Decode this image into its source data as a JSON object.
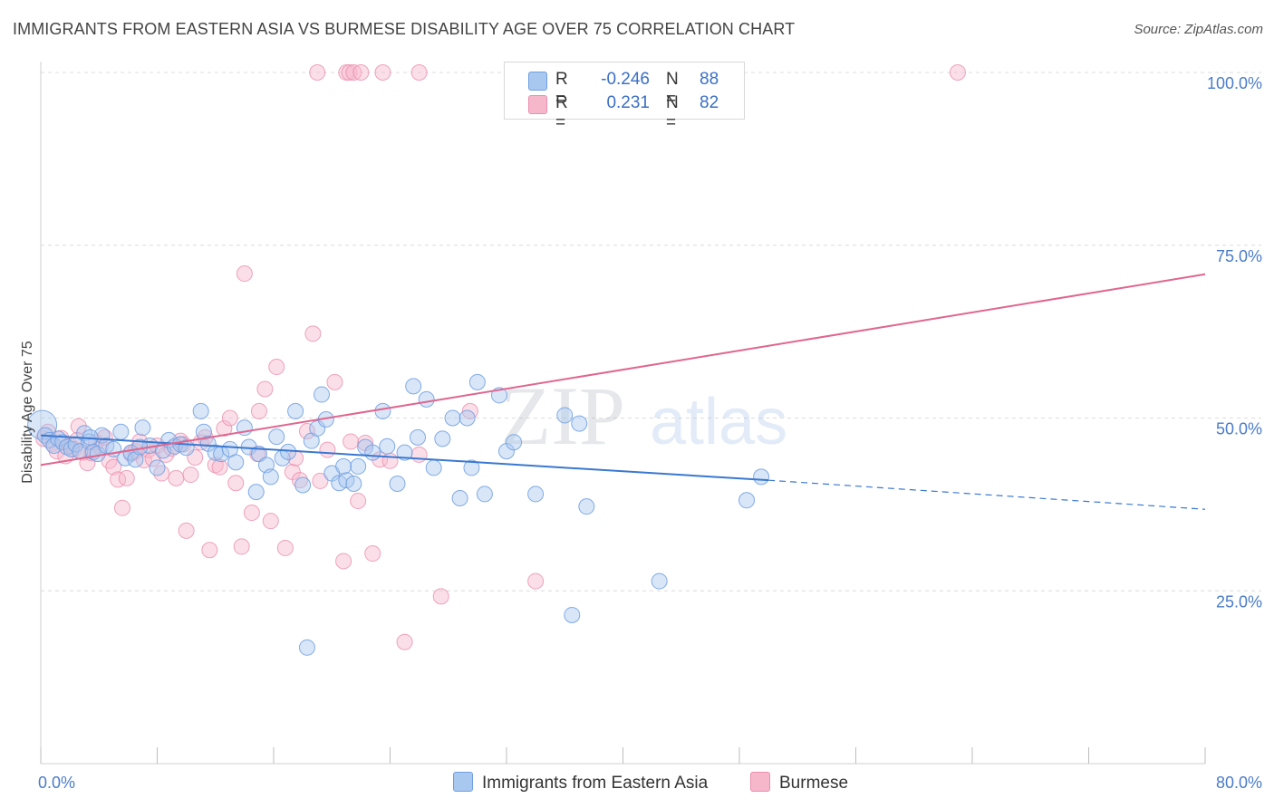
{
  "title": "IMMIGRANTS FROM EASTERN ASIA VS BURMESE DISABILITY AGE OVER 75 CORRELATION CHART",
  "source": "Source: ZipAtlas.com",
  "watermark": {
    "zip": "ZIP",
    "atlas": "atlas"
  },
  "legend": {
    "series1": {
      "r_label": "R =",
      "r_value": "-0.246",
      "n_label": "N =",
      "n_value": "88"
    },
    "series2": {
      "r_label": "R =",
      "r_value": "0.231",
      "n_label": "N =",
      "n_value": "82"
    }
  },
  "colors": {
    "blue_fill": "#a9c8ef",
    "blue_stroke": "#6f9ee0",
    "blue_line": "#3a78d0",
    "pink_fill": "#f6b7cb",
    "pink_stroke": "#ea8fae",
    "pink_line": "#e0668f",
    "tick_text": "#4a7cc9",
    "grid": "#dcdcdc"
  },
  "chart_data": {
    "type": "scatter",
    "title": "IMMIGRANTS FROM EASTERN ASIA VS BURMESE DISABILITY AGE OVER 75 CORRELATION CHART",
    "xlabel": "",
    "ylabel": "Disability Age Over 75",
    "xlim": [
      0,
      80
    ],
    "ylim": [
      0,
      100
    ],
    "x_tick_labels": [
      "0.0%",
      "80.0%"
    ],
    "y_tick_labels": [
      "25.0%",
      "50.0%",
      "75.0%",
      "100.0%"
    ],
    "y_ticks": [
      25,
      50,
      75,
      100
    ],
    "grid": true,
    "legend_position": "top-center",
    "series": [
      {
        "name": "Immigrants from Eastern Asia",
        "color": "#a9c8ef",
        "trend": {
          "x": [
            0,
            50
          ],
          "y": [
            47.5,
            41.0
          ],
          "dashed_to": [
            80,
            36.8
          ]
        },
        "points": [
          [
            0.1,
            49.0
          ],
          [
            0.3,
            47.5
          ],
          [
            0.6,
            46.8
          ],
          [
            0.9,
            46.0
          ],
          [
            1.2,
            47.0
          ],
          [
            1.5,
            46.5
          ],
          [
            1.8,
            45.8
          ],
          [
            2.1,
            45.5
          ],
          [
            2.4,
            46.2
          ],
          [
            2.7,
            45.2
          ],
          [
            3.0,
            47.8
          ],
          [
            3.3,
            46.6
          ],
          [
            3.6,
            45.1
          ],
          [
            3.9,
            44.8
          ],
          [
            4.2,
            47.5
          ],
          [
            4.5,
            46.0
          ],
          [
            5.0,
            45.5
          ],
          [
            5.5,
            48.0
          ],
          [
            5.8,
            44.2
          ],
          [
            6.2,
            45.0
          ],
          [
            6.5,
            44.0
          ],
          [
            7.0,
            48.6
          ],
          [
            7.5,
            46.0
          ],
          [
            8.0,
            42.8
          ],
          [
            8.4,
            45.3
          ],
          [
            8.8,
            46.8
          ],
          [
            9.2,
            45.9
          ],
          [
            9.6,
            46.2
          ],
          [
            10.0,
            45.7
          ],
          [
            11.0,
            51.0
          ],
          [
            11.2,
            48.0
          ],
          [
            11.5,
            46.3
          ],
          [
            12.0,
            45.0
          ],
          [
            12.4,
            44.8
          ],
          [
            13.0,
            45.5
          ],
          [
            13.4,
            43.6
          ],
          [
            14.0,
            48.6
          ],
          [
            14.3,
            45.8
          ],
          [
            14.8,
            39.3
          ],
          [
            15.0,
            44.8
          ],
          [
            15.5,
            43.2
          ],
          [
            15.8,
            41.5
          ],
          [
            16.2,
            47.3
          ],
          [
            16.6,
            44.2
          ],
          [
            17.0,
            45.1
          ],
          [
            17.5,
            51.0
          ],
          [
            18.0,
            40.3
          ],
          [
            18.3,
            16.8
          ],
          [
            18.6,
            46.7
          ],
          [
            19.0,
            48.5
          ],
          [
            19.3,
            53.4
          ],
          [
            19.6,
            49.8
          ],
          [
            20.0,
            42.0
          ],
          [
            20.5,
            40.6
          ],
          [
            21.0,
            41.0
          ],
          [
            21.5,
            40.5
          ],
          [
            21.8,
            43.0
          ],
          [
            22.3,
            45.8
          ],
          [
            22.8,
            45.0
          ],
          [
            23.5,
            51.0
          ],
          [
            23.8,
            45.9
          ],
          [
            24.5,
            40.5
          ],
          [
            25.0,
            45.0
          ],
          [
            25.6,
            54.6
          ],
          [
            25.9,
            47.2
          ],
          [
            26.5,
            52.7
          ],
          [
            27.0,
            42.8
          ],
          [
            27.6,
            47.0
          ],
          [
            28.3,
            50.0
          ],
          [
            28.8,
            38.4
          ],
          [
            29.3,
            50.0
          ],
          [
            29.6,
            42.8
          ],
          [
            30.0,
            55.2
          ],
          [
            30.5,
            39.0
          ],
          [
            31.5,
            53.3
          ],
          [
            32.0,
            45.2
          ],
          [
            32.5,
            46.5
          ],
          [
            34.0,
            39.0
          ],
          [
            36.0,
            50.4
          ],
          [
            36.5,
            21.5
          ],
          [
            37.0,
            49.2
          ],
          [
            37.5,
            37.2
          ],
          [
            42.5,
            26.4
          ],
          [
            48.5,
            38.1
          ],
          [
            49.5,
            41.5
          ],
          [
            20.8,
            43.0
          ],
          [
            3.4,
            47.2
          ],
          [
            6.8,
            45.8
          ]
        ]
      },
      {
        "name": "Burmese",
        "color": "#f6b7cb",
        "trend": {
          "x": [
            0,
            80
          ],
          "y": [
            43.2,
            70.8
          ]
        },
        "points": [
          [
            0.2,
            47.0
          ],
          [
            0.5,
            48.0
          ],
          [
            0.8,
            46.3
          ],
          [
            1.1,
            45.2
          ],
          [
            1.4,
            47.1
          ],
          [
            1.7,
            44.5
          ],
          [
            2.0,
            46.0
          ],
          [
            2.3,
            45.5
          ],
          [
            2.6,
            48.8
          ],
          [
            2.9,
            45.0
          ],
          [
            3.2,
            43.5
          ],
          [
            3.5,
            44.9
          ],
          [
            3.8,
            46.5
          ],
          [
            4.1,
            45.8
          ],
          [
            4.4,
            47.2
          ],
          [
            4.7,
            43.8
          ],
          [
            5.0,
            42.9
          ],
          [
            5.3,
            41.1
          ],
          [
            5.6,
            37.0
          ],
          [
            5.9,
            41.3
          ],
          [
            6.2,
            44.8
          ],
          [
            6.5,
            45.2
          ],
          [
            6.8,
            46.6
          ],
          [
            7.1,
            43.9
          ],
          [
            7.4,
            45.4
          ],
          [
            7.7,
            44.1
          ],
          [
            8.0,
            46.0
          ],
          [
            8.3,
            42.0
          ],
          [
            8.6,
            44.7
          ],
          [
            9.0,
            45.6
          ],
          [
            9.3,
            41.3
          ],
          [
            9.6,
            46.7
          ],
          [
            10.0,
            33.7
          ],
          [
            10.3,
            41.8
          ],
          [
            10.6,
            44.3
          ],
          [
            11.0,
            46.5
          ],
          [
            11.3,
            47.2
          ],
          [
            11.6,
            30.9
          ],
          [
            12.0,
            43.2
          ],
          [
            12.3,
            42.9
          ],
          [
            12.6,
            48.5
          ],
          [
            13.0,
            50.0
          ],
          [
            13.4,
            40.6
          ],
          [
            13.8,
            31.4
          ],
          [
            14.0,
            70.9
          ],
          [
            14.5,
            36.3
          ],
          [
            15.0,
            51.0
          ],
          [
            15.4,
            54.2
          ],
          [
            15.8,
            35.1
          ],
          [
            16.2,
            57.4
          ],
          [
            16.8,
            31.2
          ],
          [
            17.3,
            42.2
          ],
          [
            17.8,
            41.0
          ],
          [
            18.3,
            48.1
          ],
          [
            18.7,
            62.2
          ],
          [
            19.2,
            40.9
          ],
          [
            19.7,
            45.4
          ],
          [
            20.2,
            55.2
          ],
          [
            20.8,
            29.3
          ],
          [
            21.3,
            46.6
          ],
          [
            21.8,
            38.0
          ],
          [
            22.3,
            46.4
          ],
          [
            22.8,
            30.4
          ],
          [
            23.3,
            44.0
          ],
          [
            24.0,
            43.8
          ],
          [
            25.0,
            17.6
          ],
          [
            26.0,
            44.7
          ],
          [
            27.5,
            24.2
          ],
          [
            29.5,
            51.0
          ],
          [
            34.0,
            26.4
          ],
          [
            19.0,
            100
          ],
          [
            21.0,
            100
          ],
          [
            21.2,
            100
          ],
          [
            21.5,
            100
          ],
          [
            22.0,
            100
          ],
          [
            23.5,
            100
          ],
          [
            26.0,
            100
          ],
          [
            63.0,
            100
          ],
          [
            2.5,
            46.8
          ],
          [
            9.8,
            46.2
          ],
          [
            14.9,
            44.8
          ],
          [
            17.5,
            44.2
          ]
        ]
      }
    ]
  },
  "bottom_legend": {
    "item1": "Immigrants from Eastern Asia",
    "item2": "Burmese"
  }
}
